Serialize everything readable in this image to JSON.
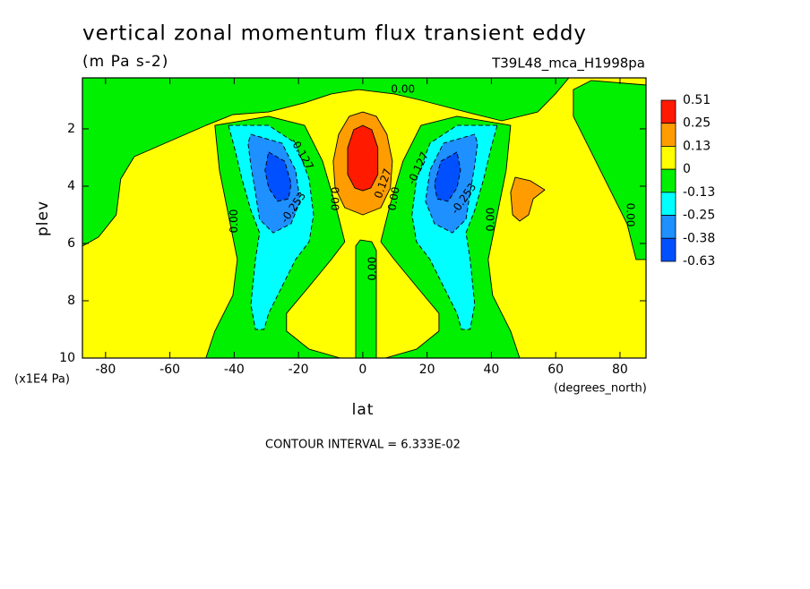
{
  "chart_data": {
    "type": "contour",
    "title": "vertical zonal momentum flux transient eddy",
    "subtitle": "(m Pa s-2)",
    "dataset": "T39L48_mca_H1998pa",
    "xlabel": "lat",
    "xunit": "(degrees_north)",
    "ylabel": "plev",
    "yunit": "(x1E4 Pa)",
    "footnote": "CONTOUR INTERVAL = 6.333E-02",
    "xlim": [
      -87.2,
      88.1
    ],
    "xticks": [
      -80,
      -60,
      -40,
      -20,
      0,
      20,
      40,
      60,
      80
    ],
    "ylim": [
      0.22,
      10
    ],
    "y_reversed": true,
    "yticks": [
      2,
      4,
      6,
      8,
      10
    ],
    "colorbar": {
      "levels": [
        0.51,
        0.25,
        0.13,
        0,
        -0.13,
        -0.25,
        -0.38,
        -0.63
      ],
      "colors": [
        "#ff1a00",
        "#ff9d00",
        "#ffff00",
        "#00f000",
        "#00ffff",
        "#1e90ff",
        "#0050ff"
      ]
    },
    "regions": [
      {
        "range": [
          0,
          0.13
        ],
        "lat": [
          -87.2,
          88.1,
          88.1,
          -87.2
        ],
        "plev": [
          0.22,
          0.22,
          10,
          10
        ]
      },
      {
        "range": [
          -0.13,
          0
        ],
        "lat": [
          -87.2,
          64.1,
          59.9,
          54.4,
          43.2,
          32.1,
          18.1,
          9.8,
          -1.4,
          -9.8,
          -18.1,
          -29.3,
          -40.4,
          -48.8,
          -71.1,
          -75.3,
          -76.7,
          -82.2,
          -87.2
        ],
        "plev": [
          0.22,
          0.22,
          0.78,
          1.41,
          1.72,
          1.41,
          1.0,
          0.78,
          0.63,
          0.78,
          1.09,
          1.41,
          1.5,
          1.88,
          2.97,
          3.75,
          5.0,
          5.78,
          6.09
        ]
      },
      {
        "range": [
          -0.13,
          0
        ],
        "lat": [
          -46.0,
          -29.3,
          -18.1,
          -12.5,
          -8.4,
          -5.6,
          -9.8,
          -16.7,
          -23.7,
          -23.7,
          -16.7,
          -7.0,
          -48.8,
          -46.0,
          -40.4,
          -39.0,
          -41.8,
          -44.6
        ],
        "plev": [
          1.88,
          1.56,
          1.88,
          3.13,
          4.69,
          5.94,
          6.56,
          7.5,
          8.44,
          9.06,
          9.69,
          10,
          10,
          9.06,
          7.81,
          6.56,
          5.0,
          3.44
        ]
      },
      {
        "range": [
          -0.13,
          0
        ],
        "lat": [
          -2.2,
          -2.2,
          -0.8,
          2.8,
          4.2,
          4.2
        ],
        "plev": [
          10,
          6.09,
          5.88,
          5.94,
          6.25,
          10
        ]
      },
      {
        "range": [
          -0.13,
          0
        ],
        "lat": [
          46.0,
          29.3,
          18.1,
          12.5,
          8.4,
          5.6,
          9.8,
          16.7,
          23.7,
          23.7,
          16.7,
          7.0,
          48.8,
          46.0,
          40.4,
          39.0,
          41.8,
          44.6
        ],
        "plev": [
          1.88,
          1.56,
          1.88,
          3.13,
          4.69,
          5.94,
          6.56,
          7.5,
          8.44,
          9.06,
          9.69,
          10,
          10,
          9.06,
          7.81,
          6.56,
          5.0,
          3.44
        ]
      },
      {
        "range": [
          -0.13,
          0
        ],
        "lat": [
          65.5,
          71.1,
          88.1,
          88.1,
          85.0,
          82.2,
          65.5
        ],
        "plev": [
          0.63,
          0.31,
          0.47,
          6.56,
          6.56,
          5.31,
          1.56
        ]
      },
      {
        "range": [
          -0.25,
          -0.13
        ],
        "lat": [
          -41.8,
          -29.3,
          -20.9,
          -16.7,
          -15.3,
          -16.7,
          -20.9,
          -25.1,
          -29.3,
          -30.7,
          -33.4,
          -34.8,
          -33.4,
          -32.1,
          -34.8,
          -37.6,
          -39.9
        ],
        "plev": [
          1.88,
          1.88,
          2.5,
          3.75,
          5.0,
          5.94,
          6.56,
          7.5,
          8.44,
          9.0,
          9.0,
          8.13,
          6.56,
          5.63,
          4.84,
          3.75,
          2.66
        ]
      },
      {
        "range": [
          -0.25,
          -0.13
        ],
        "lat": [
          41.8,
          29.3,
          20.9,
          16.7,
          15.3,
          16.7,
          20.9,
          25.1,
          29.3,
          30.7,
          33.4,
          34.8,
          33.4,
          32.1,
          34.8,
          37.6,
          39.9
        ],
        "plev": [
          1.88,
          1.88,
          2.5,
          3.75,
          5.0,
          5.94,
          6.56,
          7.5,
          8.44,
          9.0,
          9.0,
          8.13,
          6.56,
          5.63,
          4.84,
          3.75,
          2.66
        ]
      },
      {
        "range": [
          -0.38,
          -0.25
        ],
        "lat": [
          -34.8,
          -25.1,
          -20.9,
          -19.5,
          -22.3,
          -27.9,
          -32.1,
          -33.4,
          -34.8,
          -35.7
        ],
        "plev": [
          2.19,
          2.5,
          3.44,
          4.53,
          5.31,
          5.63,
          5.16,
          4.22,
          3.28,
          2.5
        ]
      },
      {
        "range": [
          -0.38,
          -0.25
        ],
        "lat": [
          34.8,
          25.1,
          20.9,
          19.5,
          22.3,
          27.9,
          32.1,
          33.4,
          34.8,
          35.7
        ],
        "plev": [
          2.19,
          2.5,
          3.44,
          4.53,
          5.31,
          5.63,
          5.16,
          4.22,
          3.28,
          2.5
        ]
      },
      {
        "range": [
          -0.63,
          -0.38
        ],
        "lat": [
          -29.3,
          -24.3,
          -22.3,
          -23.1,
          -26.5,
          -29.3,
          -30.4
        ],
        "plev": [
          2.81,
          3.13,
          3.91,
          4.44,
          4.53,
          4.06,
          3.44
        ]
      },
      {
        "range": [
          -0.63,
          -0.38
        ],
        "lat": [
          29.3,
          24.3,
          22.3,
          23.1,
          26.5,
          29.3,
          30.4
        ],
        "plev": [
          2.81,
          3.13,
          3.91,
          4.44,
          4.53,
          4.06,
          3.44
        ]
      },
      {
        "range": [
          0.13,
          0.25
        ],
        "lat": [
          0,
          4.2,
          7.5,
          9.2,
          8.6,
          5.6,
          0,
          -5.6,
          -8.6,
          -9.2,
          -7.5,
          -4.2
        ],
        "plev": [
          1.41,
          1.56,
          2.19,
          3.13,
          4.06,
          4.75,
          5.0,
          4.75,
          4.06,
          3.13,
          2.19,
          1.56
        ]
      },
      {
        "range": [
          0.25,
          0.51
        ],
        "lat": [
          0,
          2.8,
          4.7,
          4.7,
          2.5,
          0,
          -2.5,
          -4.7,
          -4.7,
          -2.8
        ],
        "plev": [
          1.88,
          2.03,
          2.66,
          3.59,
          4.06,
          4.16,
          4.06,
          3.59,
          2.66,
          2.03
        ]
      },
      {
        "range": [
          0.13,
          0.25
        ],
        "lat": [
          47.4,
          52.1,
          56.6,
          53.0,
          51.6,
          48.8,
          46.6,
          46.0
        ],
        "plev": [
          3.69,
          3.81,
          4.13,
          4.44,
          5.0,
          5.22,
          5.0,
          4.22
        ]
      }
    ],
    "contour_labels": [
      {
        "text": "0.00",
        "lat": 12.5,
        "plev": 0.63
      },
      {
        "text": "-0.127",
        "lat": -19.0,
        "plev": 2.88
      },
      {
        "text": "-0.253",
        "lat": -21.5,
        "plev": 4.75
      },
      {
        "text": "0.00",
        "lat": -39.9,
        "plev": 5.22
      },
      {
        "text": "0.00",
        "lat": -8.9,
        "plev": 4.44
      },
      {
        "text": "0.127",
        "lat": 6.4,
        "plev": 3.91
      },
      {
        "text": "0.00",
        "lat": 9.8,
        "plev": 4.44
      },
      {
        "text": "-0.127",
        "lat": 17.3,
        "plev": 3.38
      },
      {
        "text": "-0.253",
        "lat": 31.5,
        "plev": 4.44
      },
      {
        "text": "0.00",
        "lat": 39.9,
        "plev": 5.16
      },
      {
        "text": "0.00",
        "lat": 3.1,
        "plev": 6.88
      },
      {
        "text": "0.00",
        "lat": 83.1,
        "plev": 5.0
      }
    ]
  }
}
